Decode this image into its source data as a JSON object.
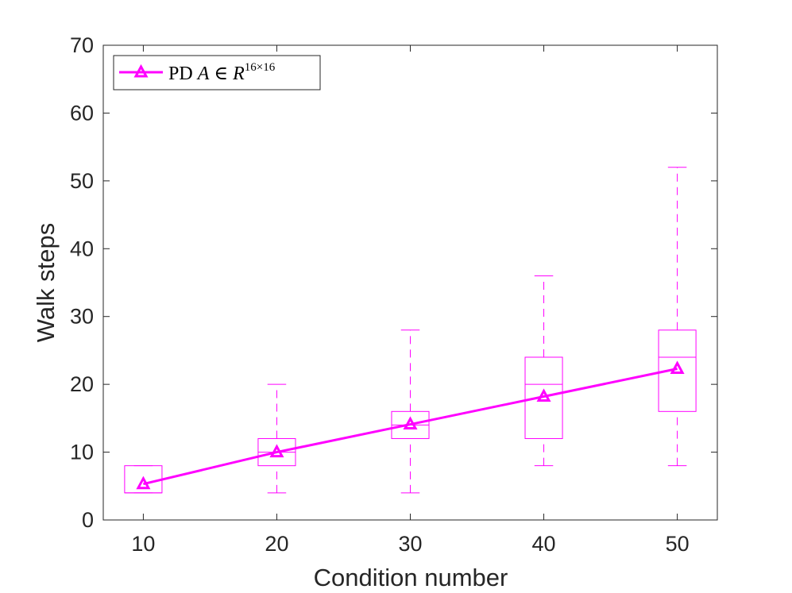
{
  "chart_data": {
    "type": "box-with-line",
    "title": "",
    "xlabel": "Condition number",
    "ylabel": "Walk steps",
    "categories": [
      10,
      20,
      30,
      40,
      50
    ],
    "xlim": [
      7,
      53
    ],
    "ylim": [
      0,
      70
    ],
    "xticks": [
      "10",
      "20",
      "30",
      "40",
      "50"
    ],
    "yticks": [
      "0",
      "10",
      "20",
      "30",
      "40",
      "50",
      "60",
      "70"
    ],
    "grid": false,
    "legend_position": "top-left",
    "color": "#ff00ff",
    "series": [
      {
        "name": "PD A ∈ R^{16×16}",
        "legend": {
          "prefix": "PD ",
          "var": "A",
          "op": " ∈ ",
          "set": "R",
          "sup": "16×16"
        },
        "marker": "triangle-up",
        "line_values": [
          5.3,
          10.0,
          14.1,
          18.2,
          22.3
        ],
        "boxes": [
          {
            "x": 10,
            "whisker_low": 4,
            "q1": 4,
            "median": 4,
            "q3": 8,
            "whisker_high": 8
          },
          {
            "x": 20,
            "whisker_low": 4,
            "q1": 8,
            "median": 10,
            "q3": 12,
            "whisker_high": 20
          },
          {
            "x": 30,
            "whisker_low": 4,
            "q1": 12,
            "median": 14,
            "q3": 16,
            "whisker_high": 28
          },
          {
            "x": 40,
            "whisker_low": 8,
            "q1": 12,
            "median": 20,
            "q3": 24,
            "whisker_high": 36
          },
          {
            "x": 50,
            "whisker_low": 8,
            "q1": 16,
            "median": 24,
            "q3": 28,
            "whisker_high": 52
          }
        ]
      }
    ]
  }
}
